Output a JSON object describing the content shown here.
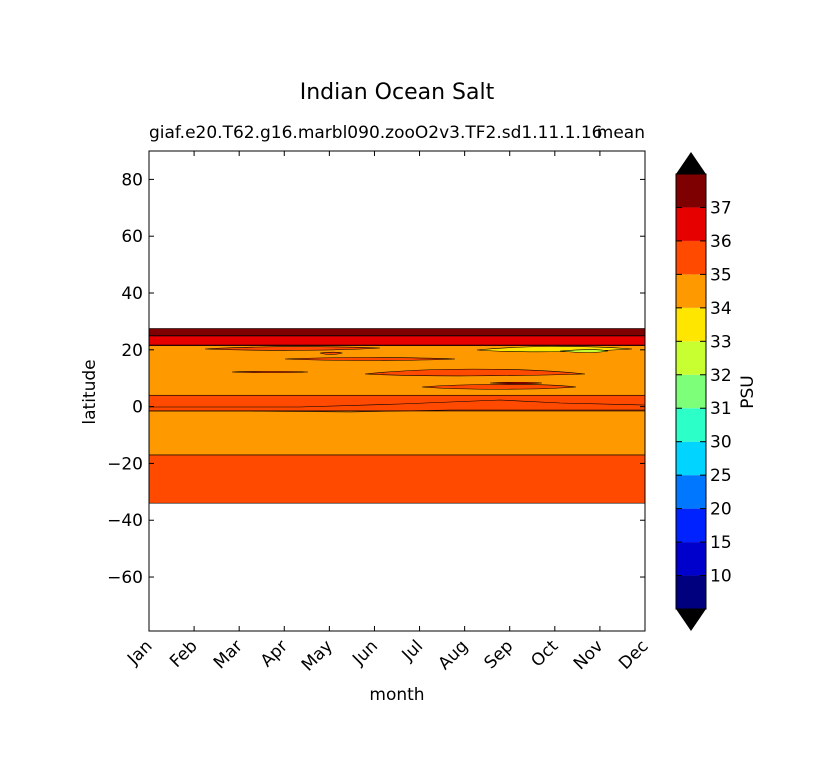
{
  "chart_data": {
    "type": "contour",
    "title": "Indian Ocean Salt",
    "subtitle_left": "giaf.e20.T62.g16.marbl090.zooO2v3.TF2.sd1.11.1.16",
    "subtitle_right": "mean",
    "xlabel": "month",
    "ylabel": "latitude",
    "x_categories": [
      "Jan",
      "Feb",
      "Mar",
      "Apr",
      "May",
      "Jun",
      "Jul",
      "Aug",
      "Sep",
      "Oct",
      "Nov",
      "Dec"
    ],
    "y_ticks": [
      80,
      60,
      40,
      20,
      0,
      -20,
      -40,
      -60
    ],
    "ylim": [
      -79,
      90
    ],
    "colorbar": {
      "label": "PSU",
      "levels": [
        10,
        15,
        20,
        25,
        30,
        31,
        32,
        33,
        34,
        35,
        36,
        37
      ],
      "colors": [
        "#00007f",
        "#0000cc",
        "#0022ff",
        "#0077ff",
        "#00d4ff",
        "#2dffc9",
        "#7dff7a",
        "#c7ff30",
        "#ffe600",
        "#ff9900",
        "#ff4a00",
        "#e60000",
        "#7f0000"
      ],
      "extend": "both"
    },
    "bands": [
      {
        "lat_min": -34,
        "lat_max": -17,
        "psu_range": "35-36"
      },
      {
        "lat_min": -17,
        "lat_max": -1.5,
        "psu_range": "34-35"
      },
      {
        "lat_min": -1.5,
        "lat_max": 4,
        "psu_range": "35-36"
      },
      {
        "lat_min": 4,
        "lat_max": 21.5,
        "psu_range": "34-35"
      },
      {
        "lat_min": 21.5,
        "lat_max": 25,
        "psu_range": "36-37"
      },
      {
        "lat_min": 25,
        "lat_max": 27.5,
        "psu_range": ">37"
      }
    ]
  }
}
